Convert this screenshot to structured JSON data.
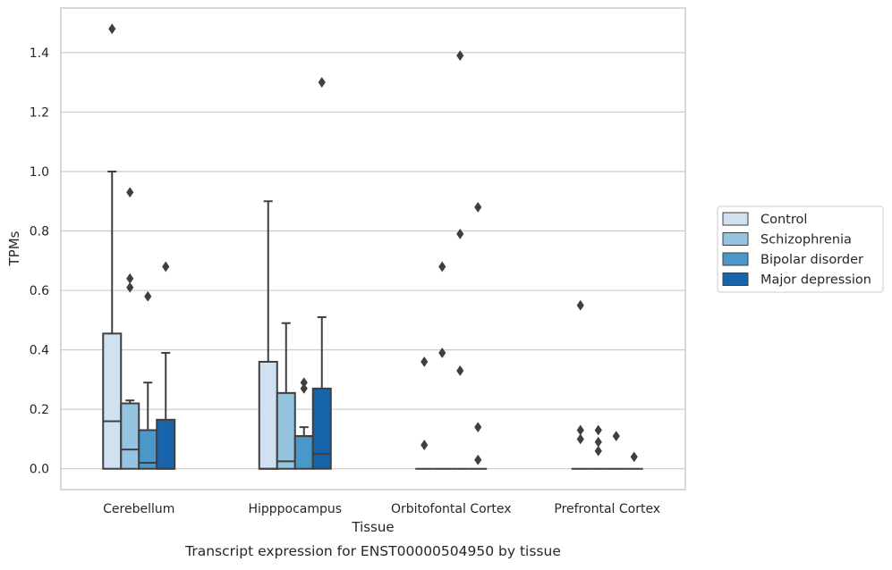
{
  "caption": "Transcript expression for ENST00000504950 by tissue",
  "colors": {
    "series": [
      "#d0e1f2",
      "#94c4df",
      "#4a98c9",
      "#1764ab"
    ],
    "edge": "#3f3f3f",
    "grid": "#cccccc",
    "frame": "#cccccc"
  },
  "chart_data": {
    "type": "box",
    "xlabel": "Tissue",
    "ylabel": "TPMs",
    "ylim": [
      -0.07,
      1.55
    ],
    "yticks": [
      0.0,
      0.2,
      0.4,
      0.6,
      0.8,
      1.0,
      1.2,
      1.4
    ],
    "ytick_labels": [
      "0.0",
      "0.2",
      "0.4",
      "0.6",
      "0.8",
      "1.0",
      "1.2",
      "1.4"
    ],
    "grid": "horizontal",
    "legend_position": "right",
    "categories": [
      "Cerebellum",
      "Hipppocampus",
      "Orbitofontal Cortex",
      "Prefrontal Cortex"
    ],
    "series": [
      {
        "name": "Control",
        "boxes": [
          {
            "q1": 0.0,
            "median": 0.16,
            "q3": 0.455,
            "whisker_low": 0.0,
            "whisker_high": 1.0,
            "outliers": [
              1.48
            ]
          },
          {
            "q1": 0.0,
            "median": 0.0,
            "q3": 0.36,
            "whisker_low": 0.0,
            "whisker_high": 0.9,
            "outliers": []
          },
          {
            "q1": 0.0,
            "median": 0.0,
            "q3": 0.0,
            "whisker_low": 0.0,
            "whisker_high": 0.0,
            "outliers": [
              0.08,
              0.36
            ]
          },
          {
            "q1": 0.0,
            "median": 0.0,
            "q3": 0.0,
            "whisker_low": 0.0,
            "whisker_high": 0.0,
            "outliers": [
              0.55,
              0.13,
              0.1
            ]
          }
        ]
      },
      {
        "name": "Schizophrenia",
        "boxes": [
          {
            "q1": 0.0,
            "median": 0.065,
            "q3": 0.22,
            "whisker_low": 0.0,
            "whisker_high": 0.23,
            "outliers": [
              0.93,
              0.64,
              0.61
            ]
          },
          {
            "q1": 0.0,
            "median": 0.025,
            "q3": 0.255,
            "whisker_low": 0.0,
            "whisker_high": 0.49,
            "outliers": []
          },
          {
            "q1": 0.0,
            "median": 0.0,
            "q3": 0.0,
            "whisker_low": 0.0,
            "whisker_high": 0.0,
            "outliers": [
              0.68,
              0.39
            ]
          },
          {
            "q1": 0.0,
            "median": 0.0,
            "q3": 0.0,
            "whisker_low": 0.0,
            "whisker_high": 0.0,
            "outliers": [
              0.13,
              0.09,
              0.06
            ]
          }
        ]
      },
      {
        "name": "Bipolar disorder",
        "boxes": [
          {
            "q1": 0.0,
            "median": 0.02,
            "q3": 0.13,
            "whisker_low": 0.0,
            "whisker_high": 0.29,
            "outliers": [
              0.58
            ]
          },
          {
            "q1": 0.0,
            "median": 0.11,
            "q3": 0.11,
            "whisker_low": 0.0,
            "whisker_high": 0.14,
            "outliers": [
              0.29,
              0.27
            ]
          },
          {
            "q1": 0.0,
            "median": 0.0,
            "q3": 0.0,
            "whisker_low": 0.0,
            "whisker_high": 0.0,
            "outliers": [
              1.39,
              0.79,
              0.33
            ]
          },
          {
            "q1": 0.0,
            "median": 0.0,
            "q3": 0.0,
            "whisker_low": 0.0,
            "whisker_high": 0.0,
            "outliers": [
              0.11
            ]
          }
        ]
      },
      {
        "name": "Major depression",
        "boxes": [
          {
            "q1": 0.0,
            "median": 0.0,
            "q3": 0.165,
            "whisker_low": 0.0,
            "whisker_high": 0.39,
            "outliers": [
              0.68
            ]
          },
          {
            "q1": 0.0,
            "median": 0.05,
            "q3": 0.27,
            "whisker_low": 0.0,
            "whisker_high": 0.51,
            "outliers": [
              1.3
            ]
          },
          {
            "q1": 0.0,
            "median": 0.0,
            "q3": 0.0,
            "whisker_low": 0.0,
            "whisker_high": 0.0,
            "outliers": [
              0.88,
              0.14,
              0.03
            ]
          },
          {
            "q1": 0.0,
            "median": 0.0,
            "q3": 0.0,
            "whisker_low": 0.0,
            "whisker_high": 0.0,
            "outliers": [
              0.04
            ]
          }
        ]
      }
    ]
  }
}
